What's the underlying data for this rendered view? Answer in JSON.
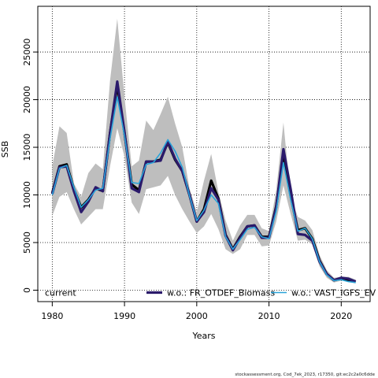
{
  "chart_data": {
    "type": "line",
    "title": "",
    "xlabel": "Years",
    "ylabel": "SSB",
    "xlim": [
      1978,
      2024
    ],
    "ylim": [
      -1200,
      29800
    ],
    "x_ticks": [
      1980,
      1990,
      2000,
      2010,
      2020
    ],
    "y_ticks": [
      0,
      5000,
      10000,
      15000,
      20000,
      25000
    ],
    "grid": true,
    "grid_style": "dotted",
    "legend_placement": "bottom",
    "x": [
      1980,
      1981,
      1982,
      1983,
      1984,
      1985,
      1986,
      1987,
      1988,
      1989,
      1990,
      1991,
      1992,
      1993,
      1994,
      1995,
      1996,
      1997,
      1998,
      1999,
      2000,
      2001,
      2002,
      2003,
      2004,
      2005,
      2006,
      2007,
      2008,
      2009,
      2010,
      2011,
      2012,
      2013,
      2014,
      2015,
      2016,
      2017,
      2018,
      2019,
      2020,
      2021,
      2022
    ],
    "confidence_band": {
      "color": "#bebebe",
      "lower": [
        7800,
        9800,
        10300,
        8500,
        6900,
        7700,
        8500,
        8500,
        13000,
        17000,
        14000,
        9200,
        8000,
        10600,
        10800,
        11000,
        12000,
        10000,
        8500,
        7200,
        6000,
        6700,
        8000,
        6400,
        4300,
        3800,
        4300,
        5800,
        5800,
        4600,
        4700,
        7200,
        11000,
        8000,
        5200,
        5300,
        4800,
        2500,
        1300,
        800,
        1000,
        900,
        700
      ],
      "upper": [
        13000,
        17200,
        16500,
        11200,
        9800,
        12300,
        13300,
        12700,
        22000,
        28500,
        20300,
        13000,
        13600,
        17800,
        16800,
        18500,
        20300,
        17500,
        15000,
        10700,
        8200,
        11500,
        14300,
        10300,
        7300,
        5200,
        6800,
        7900,
        7900,
        6500,
        6200,
        10500,
        17600,
        9800,
        7700,
        7300,
        6300,
        3700,
        2100,
        1300,
        1400,
        1400,
        1100
      ]
    },
    "series": [
      {
        "name": "current",
        "color": "#000000",
        "values": [
          10200,
          13000,
          13200,
          10600,
          8700,
          9500,
          10700,
          10400,
          16500,
          21500,
          16500,
          11100,
          10500,
          13500,
          13500,
          13700,
          15500,
          13700,
          12500,
          10000,
          7200,
          8500,
          11500,
          9600,
          5800,
          4300,
          5600,
          6700,
          6800,
          5600,
          5600,
          8800,
          14200,
          9900,
          6300,
          6500,
          5400,
          3100,
          1700,
          1050,
          1200,
          1050,
          900
        ]
      },
      {
        "name": "w.o.: FR_OTDEF_Biomass",
        "color": "#2b1a6b",
        "values": [
          10100,
          12900,
          13000,
          10400,
          8200,
          9300,
          10800,
          10400,
          16500,
          21900,
          16600,
          10700,
          10300,
          13500,
          13500,
          13600,
          15600,
          13800,
          12500,
          10000,
          7200,
          8200,
          10700,
          9500,
          5700,
          4200,
          5500,
          6700,
          6800,
          5500,
          5500,
          8700,
          14800,
          10600,
          5900,
          5800,
          5200,
          3000,
          1700,
          1050,
          1300,
          1200,
          900
        ]
      },
      {
        "name": "w.o.: VAST_IGFS_EV",
        "color": "#29a3d9",
        "values": [
          10000,
          12800,
          13100,
          10800,
          8700,
          9500,
          10500,
          10700,
          15900,
          20300,
          16200,
          11300,
          11200,
          13200,
          13400,
          14400,
          15800,
          14600,
          12900,
          9900,
          7300,
          8400,
          10000,
          9100,
          5600,
          4300,
          5300,
          6400,
          6600,
          5600,
          5400,
          8300,
          13400,
          9500,
          6200,
          6500,
          5400,
          3000,
          1600,
          1000,
          1100,
          900,
          800
        ]
      }
    ]
  },
  "footer": {
    "credit": "stockassessment.org, Cod_7ek_2023, r17350, git:ec2c2a0c6dde"
  }
}
